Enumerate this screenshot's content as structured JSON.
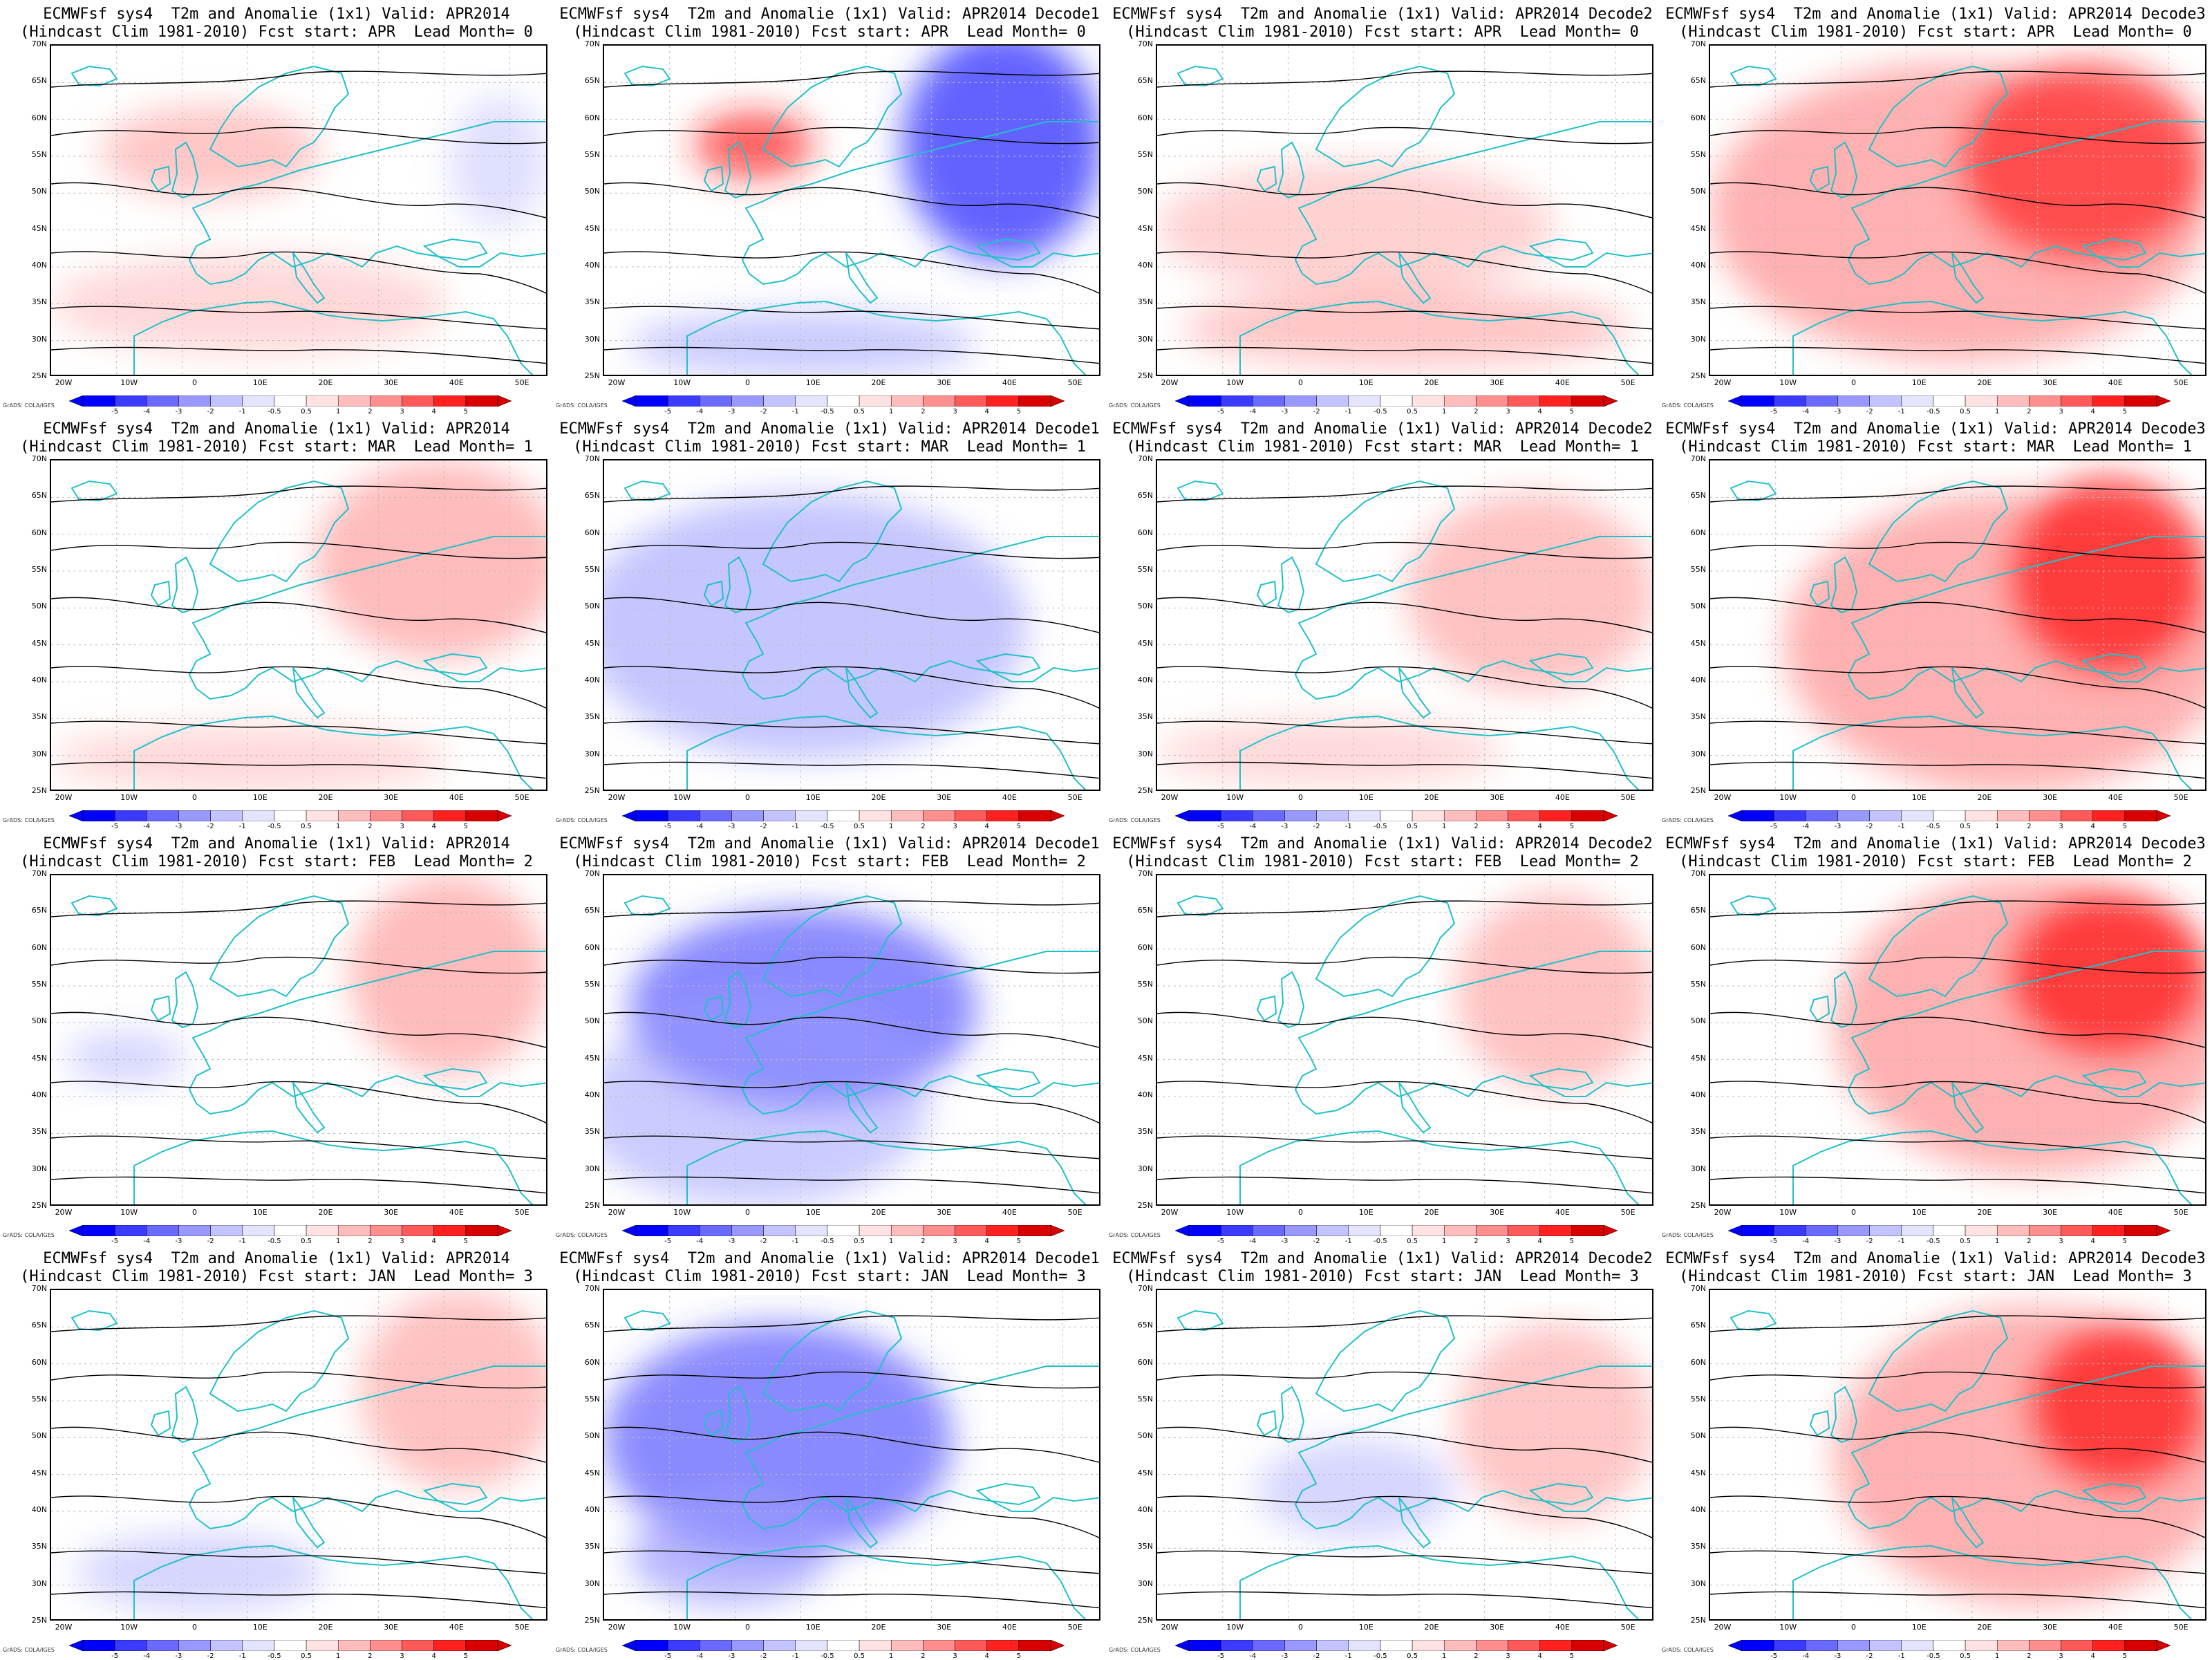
{
  "panels": [
    {
      "title1": "ECMWFsf sys4  T2m and Anomalie (1x1) Valid: APR2014",
      "title2": "(Hindcast Clim 1981-2010) Fcst start: APR  Lead Month= 0"
    },
    {
      "title1": "ECMWFsf sys4  T2m and Anomalie (1x1) Valid: APR2014 Decode1",
      "title2": "(Hindcast Clim 1981-2010) Fcst start: APR  Lead Month= 0"
    },
    {
      "title1": "ECMWFsf sys4  T2m and Anomalie (1x1) Valid: APR2014 Decode2",
      "title2": "(Hindcast Clim 1981-2010) Fcst start: APR  Lead Month= 0"
    },
    {
      "title1": "ECMWFsf sys4  T2m and Anomalie (1x1) Valid: APR2014 Decode3",
      "title2": "(Hindcast Clim 1981-2010) Fcst start: APR  Lead Month= 0"
    },
    {
      "title1": "ECMWFsf sys4  T2m and Anomalie (1x1) Valid: APR2014",
      "title2": "(Hindcast Clim 1981-2010) Fcst start: MAR  Lead Month= 1"
    },
    {
      "title1": "ECMWFsf sys4  T2m and Anomalie (1x1) Valid: APR2014 Decode1",
      "title2": "(Hindcast Clim 1981-2010) Fcst start: MAR  Lead Month= 1"
    },
    {
      "title1": "ECMWFsf sys4  T2m and Anomalie (1x1) Valid: APR2014 Decode2",
      "title2": "(Hindcast Clim 1981-2010) Fcst start: MAR  Lead Month= 1"
    },
    {
      "title1": "ECMWFsf sys4  T2m and Anomalie (1x1) Valid: APR2014 Decode3",
      "title2": "(Hindcast Clim 1981-2010) Fcst start: MAR  Lead Month= 1"
    },
    {
      "title1": "ECMWFsf sys4  T2m and Anomalie (1x1) Valid: APR2014",
      "title2": "(Hindcast Clim 1981-2010) Fcst start: FEB  Lead Month= 2"
    },
    {
      "title1": "ECMWFsf sys4  T2m and Anomalie (1x1) Valid: APR2014 Decode1",
      "title2": "(Hindcast Clim 1981-2010) Fcst start: FEB  Lead Month= 2"
    },
    {
      "title1": "ECMWFsf sys4  T2m and Anomalie (1x1) Valid: APR2014 Decode2",
      "title2": "(Hindcast Clim 1981-2010) Fcst start: FEB  Lead Month= 2"
    },
    {
      "title1": "ECMWFsf sys4  T2m and Anomalie (1x1) Valid: APR2014 Decode3",
      "title2": "(Hindcast Clim 1981-2010) Fcst start: FEB  Lead Month= 2"
    },
    {
      "title1": "ECMWFsf sys4  T2m and Anomalie (1x1) Valid: APR2014",
      "title2": "(Hindcast Clim 1981-2010) Fcst start: JAN  Lead Month= 3"
    },
    {
      "title1": "ECMWFsf sys4  T2m and Anomalie (1x1) Valid: APR2014 Decode1",
      "title2": "(Hindcast Clim 1981-2010) Fcst start: JAN  Lead Month= 3"
    },
    {
      "title1": "ECMWFsf sys4  T2m and Anomalie (1x1) Valid: APR2014 Decode2",
      "title2": "(Hindcast Clim 1981-2010) Fcst start: JAN  Lead Month= 3"
    },
    {
      "title1": "ECMWFsf sys4  T2m and Anomalie (1x1) Valid: APR2014 Decode3",
      "title2": "(Hindcast Clim 1981-2010) Fcst start: JAN  Lead Month= 3"
    }
  ],
  "lat_labels": [
    "70N",
    "65N",
    "60N",
    "55N",
    "50N",
    "45N",
    "40N",
    "35N",
    "30N",
    "25N"
  ],
  "lon_labels": [
    "20W",
    "10W",
    "0",
    "10E",
    "20E",
    "30E",
    "40E",
    "50E"
  ],
  "colorbar": {
    "ticks": [
      "-5",
      "-4",
      "-3",
      "-2",
      "-1",
      "-0.5",
      "0.5",
      "1",
      "2",
      "3",
      "4",
      "5"
    ],
    "colors": [
      "#0000ff",
      "#3b3bff",
      "#6a6aff",
      "#9898ff",
      "#c3c3ff",
      "#e4e4ff",
      "#ffffff",
      "#ffe2e2",
      "#ffbcbc",
      "#ff8f8f",
      "#ff5a5a",
      "#ff2020",
      "#d80000"
    ],
    "credit": "GrADS: COLA/IGES"
  },
  "colors": {
    "coastline": "#20c0c8",
    "contour": "#000000",
    "warm": "#ff6060",
    "cold": "#6060ff"
  }
}
